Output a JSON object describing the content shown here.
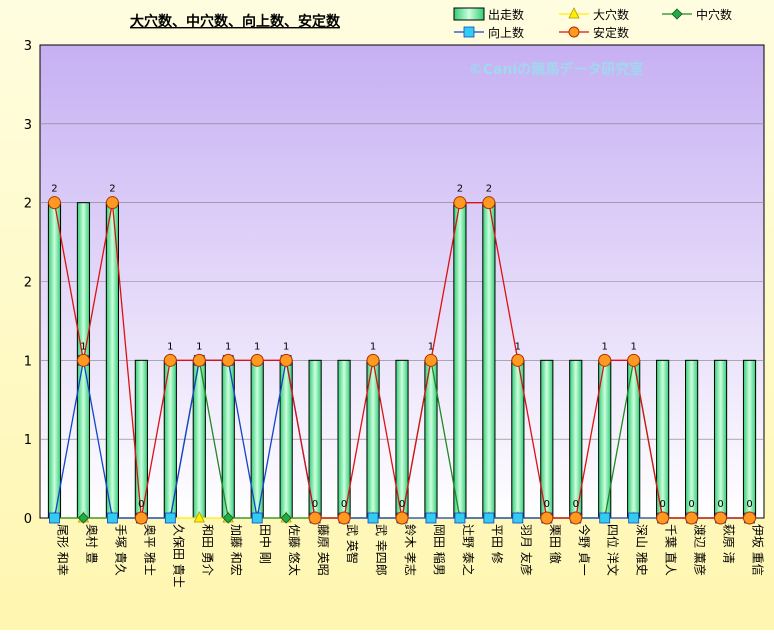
{
  "chart_data": {
    "type": "bar",
    "title": "大穴数、中穴数、向上数、安定数",
    "watermark": "©Caniの競馬データ研究室",
    "y_ticks": [
      "0",
      "1",
      "1",
      "2",
      "2",
      "3",
      "3"
    ],
    "ylim": [
      0,
      3
    ],
    "grid": true,
    "legend_position": "top-right",
    "categories": [
      "尾形 和幸",
      "奥村 豊",
      "手塚 貴久",
      "奥平 雅士",
      "久保田 貴士",
      "和田 勇介",
      "加藤 和宏",
      "田中 剛",
      "佐藤 悠太",
      "藤原 英昭",
      "武 英智",
      "武 幸四郎",
      "鈴木 孝志",
      "岡田 稲男",
      "辻野 泰之",
      "平田 修",
      "羽月 友彦",
      "栗田 徹",
      "今野 貞一",
      "四位 洋文",
      "深山 雅史",
      "千葉 直人",
      "渡辺 薫彦",
      "萩原 清",
      "伊坂 重信"
    ],
    "series": [
      {
        "name": "出走数",
        "type": "bar",
        "color": "#66ee99",
        "values": [
          2,
          2,
          2,
          1,
          1,
          1,
          1,
          1,
          1,
          1,
          1,
          1,
          1,
          1,
          2,
          2,
          1,
          1,
          1,
          1,
          1,
          1,
          1,
          1,
          1
        ]
      },
      {
        "name": "大穴数",
        "type": "line",
        "color": "#ffee00",
        "values": [
          0,
          0,
          0,
          0,
          0,
          0,
          0,
          0,
          0,
          0,
          0,
          0,
          0,
          0,
          0,
          0,
          0,
          0,
          0,
          0,
          0,
          0,
          0,
          0,
          0
        ]
      },
      {
        "name": "中穴数",
        "type": "line",
        "color": "#228822",
        "values": [
          0,
          0,
          0,
          0,
          0,
          1,
          0,
          0,
          0,
          0,
          0,
          0,
          0,
          1,
          0,
          0,
          0,
          0,
          0,
          0,
          1,
          0,
          0,
          0,
          0
        ]
      },
      {
        "name": "向上数",
        "type": "line",
        "color": "#1144cc",
        "values": [
          0,
          1,
          0,
          0,
          0,
          1,
          1,
          0,
          1,
          0,
          0,
          0,
          0,
          0,
          0,
          0,
          0,
          0,
          0,
          0,
          0,
          0,
          0,
          0,
          0
        ]
      },
      {
        "name": "安定数",
        "type": "line",
        "color": "#dd1111",
        "values": [
          2,
          1,
          2,
          0,
          1,
          1,
          1,
          1,
          1,
          0,
          0,
          1,
          0,
          1,
          2,
          2,
          1,
          0,
          0,
          1,
          1,
          0,
          0,
          0,
          0
        ]
      }
    ],
    "data_labels": [
      "2",
      "1",
      "2",
      "0",
      "1",
      "1",
      "1",
      "1",
      "1",
      "0",
      "0",
      "1",
      "0",
      "1",
      "2",
      "2",
      "1",
      "0",
      "0",
      "1",
      "1",
      "0",
      "0",
      "0",
      "0"
    ]
  }
}
